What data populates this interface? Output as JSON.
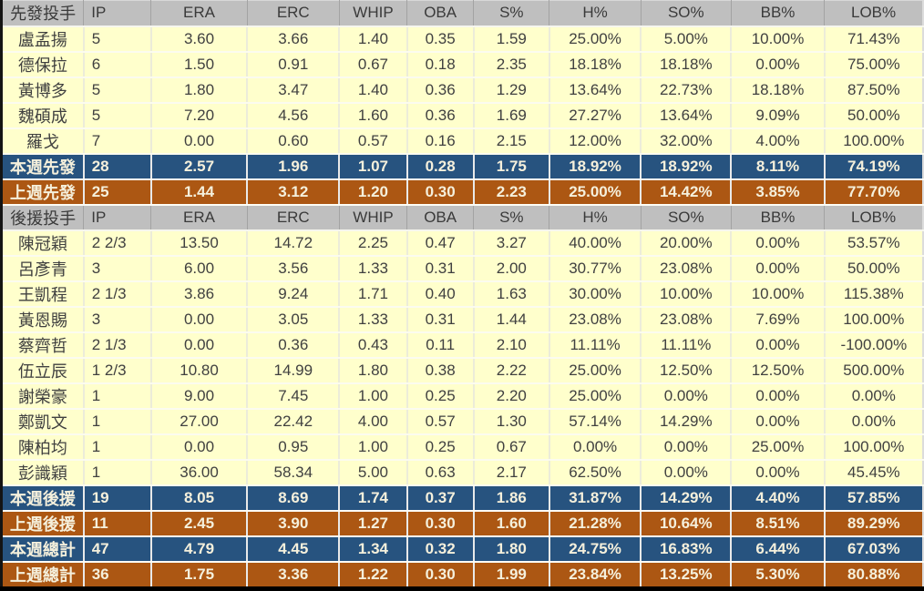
{
  "colors": {
    "header_bg": "#BFBFBF",
    "header_text": "#3A3A3A",
    "player_row_bg": "#FFFFCC",
    "player_text": "#404040",
    "this_week_row_bg": "#27537F",
    "last_week_row_bg": "#AC5713",
    "summary_text": "#F5F0DC",
    "outer_border": "#000000"
  },
  "chart_data": {
    "type": "table",
    "title": "",
    "columns": [
      "IP",
      "ERA",
      "ERC",
      "WHIP",
      "OBA",
      "S%",
      "H%",
      "SO%",
      "BB%",
      "LOB%"
    ],
    "sections": [
      {
        "header": [
          "先發投手",
          "IP",
          "ERA",
          "ERC",
          "WHIP",
          "OBA",
          "S%",
          "H%",
          "SO%",
          "BB%",
          "LOB%"
        ],
        "rows": [
          {
            "style": "player",
            "cells": [
              "盧孟揚",
              "5",
              "3.60",
              "3.66",
              "1.40",
              "0.35",
              "1.59",
              "25.00%",
              "5.00%",
              "10.00%",
              "71.43%"
            ]
          },
          {
            "style": "player",
            "cells": [
              "德保拉",
              "6",
              "1.50",
              "0.91",
              "0.67",
              "0.18",
              "2.35",
              "18.18%",
              "18.18%",
              "0.00%",
              "75.00%"
            ]
          },
          {
            "style": "player",
            "cells": [
              "黃博多",
              "5",
              "1.80",
              "3.47",
              "1.40",
              "0.36",
              "1.29",
              "13.64%",
              "22.73%",
              "18.18%",
              "87.50%"
            ]
          },
          {
            "style": "player",
            "cells": [
              "魏碩成",
              "5",
              "7.20",
              "4.56",
              "1.60",
              "0.36",
              "1.69",
              "27.27%",
              "13.64%",
              "9.09%",
              "50.00%"
            ]
          },
          {
            "style": "player",
            "cells": [
              "羅戈",
              "7",
              "0.00",
              "0.60",
              "0.57",
              "0.16",
              "2.15",
              "12.00%",
              "32.00%",
              "4.00%",
              "100.00%"
            ]
          },
          {
            "style": "current",
            "cells": [
              "本週先發",
              "28",
              "2.57",
              "1.96",
              "1.07",
              "0.28",
              "1.75",
              "18.92%",
              "18.92%",
              "8.11%",
              "74.19%"
            ]
          },
          {
            "style": "previous",
            "cells": [
              "上週先發",
              "25",
              "1.44",
              "3.12",
              "1.20",
              "0.30",
              "2.23",
              "25.00%",
              "14.42%",
              "3.85%",
              "77.70%"
            ]
          }
        ]
      },
      {
        "header": [
          "後援投手",
          "IP",
          "ERA",
          "ERC",
          "WHIP",
          "OBA",
          "S%",
          "H%",
          "SO%",
          "BB%",
          "LOB%"
        ],
        "rows": [
          {
            "style": "player",
            "cells": [
              "陳冠穎",
              "2 2/3",
              "13.50",
              "14.72",
              "2.25",
              "0.47",
              "3.27",
              "40.00%",
              "20.00%",
              "0.00%",
              "53.57%"
            ]
          },
          {
            "style": "player",
            "cells": [
              "呂彥青",
              "3",
              "6.00",
              "3.56",
              "1.33",
              "0.31",
              "2.00",
              "30.77%",
              "23.08%",
              "0.00%",
              "50.00%"
            ]
          },
          {
            "style": "player",
            "cells": [
              "王凱程",
              "2 1/3",
              "3.86",
              "9.24",
              "1.71",
              "0.40",
              "1.63",
              "30.00%",
              "10.00%",
              "10.00%",
              "115.38%"
            ]
          },
          {
            "style": "player",
            "cells": [
              "黃恩賜",
              "3",
              "0.00",
              "3.05",
              "1.33",
              "0.31",
              "1.44",
              "23.08%",
              "23.08%",
              "7.69%",
              "100.00%"
            ]
          },
          {
            "style": "player",
            "cells": [
              "蔡齊哲",
              "2 1/3",
              "0.00",
              "0.36",
              "0.43",
              "0.11",
              "2.10",
              "11.11%",
              "11.11%",
              "0.00%",
              "-100.00%"
            ]
          },
          {
            "style": "player",
            "cells": [
              "伍立辰",
              "1 2/3",
              "10.80",
              "14.99",
              "1.80",
              "0.38",
              "2.22",
              "25.00%",
              "12.50%",
              "12.50%",
              "500.00%"
            ]
          },
          {
            "style": "player",
            "cells": [
              "謝榮豪",
              "1",
              "9.00",
              "7.45",
              "1.00",
              "0.25",
              "2.20",
              "25.00%",
              "0.00%",
              "0.00%",
              "0.00%"
            ]
          },
          {
            "style": "player",
            "cells": [
              "鄭凱文",
              "1",
              "27.00",
              "22.42",
              "4.00",
              "0.57",
              "1.30",
              "57.14%",
              "14.29%",
              "0.00%",
              "0.00%"
            ]
          },
          {
            "style": "player",
            "cells": [
              "陳柏均",
              "1",
              "0.00",
              "0.95",
              "1.00",
              "0.25",
              "0.67",
              "0.00%",
              "0.00%",
              "25.00%",
              "100.00%"
            ]
          },
          {
            "style": "player",
            "cells": [
              "彭識穎",
              "1",
              "36.00",
              "58.34",
              "5.00",
              "0.63",
              "2.17",
              "62.50%",
              "0.00%",
              "0.00%",
              "45.45%"
            ]
          },
          {
            "style": "current",
            "cells": [
              "本週後援",
              "19",
              "8.05",
              "8.69",
              "1.74",
              "0.37",
              "1.86",
              "31.87%",
              "14.29%",
              "4.40%",
              "57.85%"
            ]
          },
          {
            "style": "previous",
            "cells": [
              "上週後援",
              "11",
              "2.45",
              "3.90",
              "1.27",
              "0.30",
              "1.60",
              "21.28%",
              "10.64%",
              "8.51%",
              "89.29%"
            ]
          },
          {
            "style": "current",
            "cells": [
              "本週總計",
              "47",
              "4.79",
              "4.45",
              "1.34",
              "0.32",
              "1.80",
              "24.75%",
              "16.83%",
              "6.44%",
              "67.03%"
            ]
          },
          {
            "style": "previous",
            "cells": [
              "上週總計",
              "36",
              "1.75",
              "3.36",
              "1.22",
              "0.30",
              "1.99",
              "23.84%",
              "13.25%",
              "5.30%",
              "80.88%"
            ]
          }
        ]
      }
    ]
  }
}
